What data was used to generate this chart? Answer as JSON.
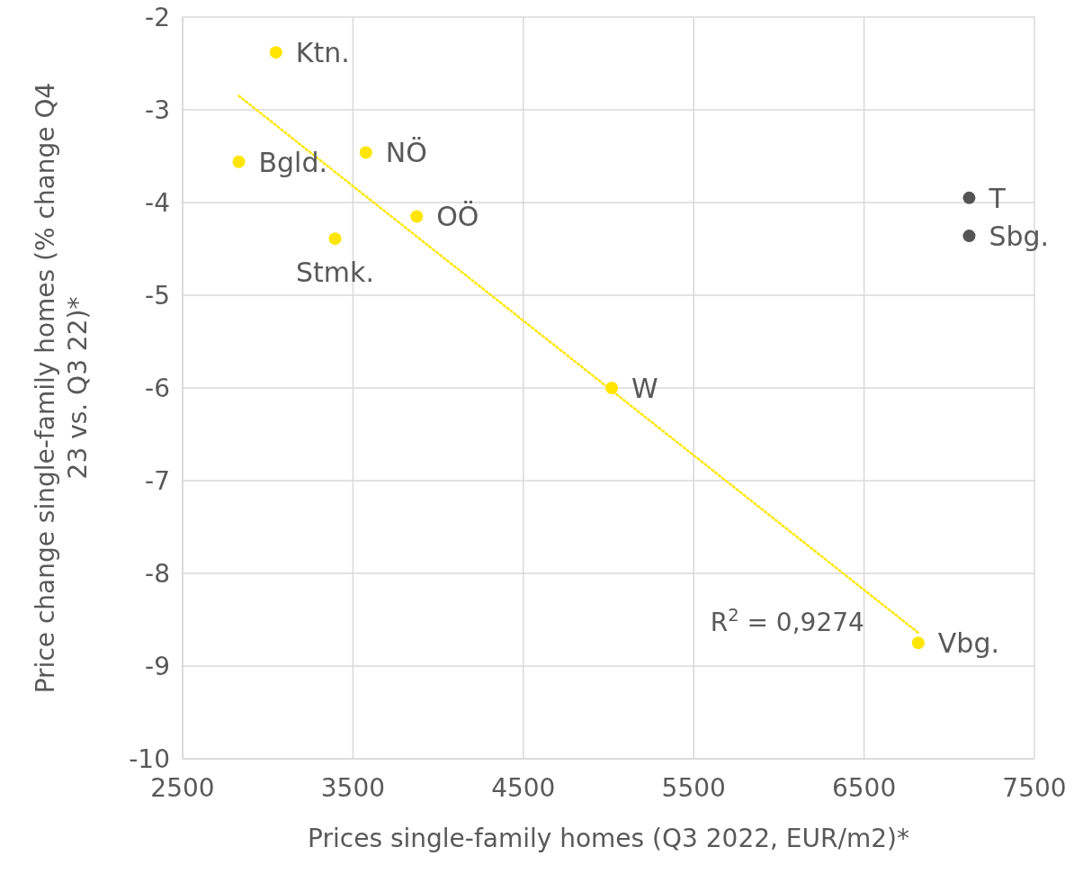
{
  "chart_data": {
    "type": "scatter",
    "xlabel": "Prices single-family homes (Q3 2022, EUR/m2)*",
    "ylabel": "Price change single-family homes (% change Q4 23 vs. Q3 22)*",
    "xlim": [
      2500,
      7500
    ],
    "xticks": [
      2500,
      3500,
      4500,
      5500,
      6500,
      7500
    ],
    "ylim": [
      -10,
      -2
    ],
    "yticks": [
      -10,
      -9,
      -8,
      -7,
      -6,
      -5,
      -4,
      -3,
      -2
    ],
    "grid": true,
    "series": [
      {
        "color": "#ffe600",
        "marker": "circle",
        "x": [
          3048,
          2830,
          3576,
          3874,
          3395,
          5019,
          6818
        ],
        "values": [
          -2.38,
          -3.56,
          -3.46,
          -4.15,
          -4.39,
          -6.0,
          -8.75
        ]
      },
      {
        "color": "#555555",
        "marker": "circle",
        "x": [
          7117,
          7117
        ],
        "values": [
          -3.95,
          -4.36
        ]
      },
      {
        "type": "line",
        "line_style": "dotted",
        "marker": "none",
        "color": "#ffe600",
        "x": [
          2830,
          6818
        ],
        "values": [
          -2.85,
          -8.64
        ]
      }
    ],
    "annotations": [
      {
        "text": "Ktn.",
        "x": 3048,
        "y": -2.38
      },
      {
        "text": "Bgld.",
        "x": 2830,
        "y": -3.56
      },
      {
        "text": "NÖ",
        "x": 3576,
        "y": -3.46
      },
      {
        "text": "OÖ",
        "x": 3874,
        "y": -4.15
      },
      {
        "text": "Stmk.",
        "x": 3395,
        "y": -4.39
      },
      {
        "text": "W",
        "x": 5019,
        "y": -6.0
      },
      {
        "text": "Vbg.",
        "x": 6818,
        "y": -8.75
      },
      {
        "text": "T",
        "x": 7117,
        "y": -3.95
      },
      {
        "text": "Sbg.",
        "x": 7117,
        "y": -4.36
      },
      "R$^{2}$ = 0,9274"
    ]
  }
}
